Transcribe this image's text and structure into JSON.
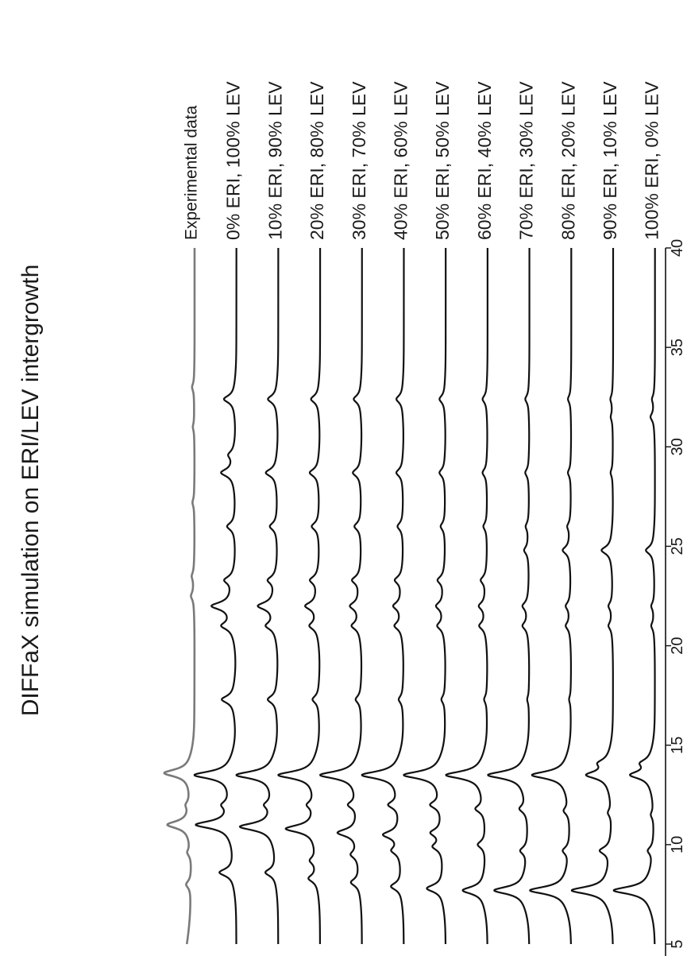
{
  "chart_data": {
    "type": "line",
    "title": "DIFFaX simulation on ERI/LEV intergrowth",
    "xlabel": "",
    "ylabel": "",
    "xlim": [
      5,
      40
    ],
    "x_ticks": [
      "5",
      "10",
      "15",
      "20",
      "25",
      "30",
      "35",
      "40"
    ],
    "orientation": "rotated 90° counter-clockwise (2θ axis runs bottom-to-top)",
    "grid": false,
    "legend": "labels beside each trace at the 40 end",
    "series": [
      {
        "name": "Experimental data",
        "color": "#7a7a7a",
        "peaks": [
          [
            8.0,
            0.14
          ],
          [
            9.6,
            0.1
          ],
          [
            11.0,
            0.62
          ],
          [
            12.0,
            0.1
          ],
          [
            13.6,
            0.72
          ],
          [
            22.5,
            0.08
          ],
          [
            23.5,
            0.06
          ],
          [
            27.2,
            0.05
          ],
          [
            31.0,
            0.04
          ],
          [
            33.0,
            0.06
          ]
        ]
      },
      {
        "name": "0% ERI, 100% LEV",
        "color": "#111111",
        "peaks": [
          [
            8.6,
            0.4
          ],
          [
            11.0,
            0.95
          ],
          [
            12.0,
            0.2
          ],
          [
            13.5,
            1.0
          ],
          [
            17.3,
            0.35
          ],
          [
            21.0,
            0.3
          ],
          [
            22.0,
            0.55
          ],
          [
            23.3,
            0.25
          ],
          [
            26.0,
            0.22
          ],
          [
            28.7,
            0.35
          ],
          [
            29.6,
            0.15
          ],
          [
            32.4,
            0.3
          ]
        ]
      },
      {
        "name": "10% ERI, 90% LEV",
        "color": "#111111",
        "peaks": [
          [
            8.6,
            0.3
          ],
          [
            10.9,
            0.9
          ],
          [
            12.0,
            0.2
          ],
          [
            13.5,
            1.0
          ],
          [
            17.3,
            0.25
          ],
          [
            21.0,
            0.25
          ],
          [
            22.0,
            0.45
          ],
          [
            23.3,
            0.22
          ],
          [
            26.0,
            0.2
          ],
          [
            28.7,
            0.3
          ],
          [
            32.4,
            0.25
          ]
        ]
      },
      {
        "name": "20% ERI, 80% LEV",
        "color": "#111111",
        "peaks": [
          [
            8.3,
            0.25
          ],
          [
            9.2,
            0.18
          ],
          [
            10.8,
            0.8
          ],
          [
            12.0,
            0.2
          ],
          [
            13.5,
            1.0
          ],
          [
            17.3,
            0.18
          ],
          [
            21.0,
            0.22
          ],
          [
            22.0,
            0.32
          ],
          [
            23.3,
            0.22
          ],
          [
            26.0,
            0.2
          ],
          [
            28.7,
            0.25
          ],
          [
            32.4,
            0.22
          ]
        ]
      },
      {
        "name": "30% ERI, 70% LEV",
        "color": "#111111",
        "peaks": [
          [
            8.1,
            0.25
          ],
          [
            9.5,
            0.2
          ],
          [
            10.6,
            0.55
          ],
          [
            12.0,
            0.25
          ],
          [
            13.5,
            1.0
          ],
          [
            17.3,
            0.15
          ],
          [
            21.0,
            0.22
          ],
          [
            22.0,
            0.25
          ],
          [
            23.3,
            0.22
          ],
          [
            26.0,
            0.18
          ],
          [
            28.7,
            0.22
          ],
          [
            32.4,
            0.2
          ]
        ]
      },
      {
        "name": "40% ERI, 60% LEV",
        "color": "#111111",
        "peaks": [
          [
            7.9,
            0.3
          ],
          [
            9.7,
            0.22
          ],
          [
            10.5,
            0.45
          ],
          [
            12.0,
            0.3
          ],
          [
            13.5,
            1.0
          ],
          [
            17.3,
            0.12
          ],
          [
            21.0,
            0.2
          ],
          [
            22.0,
            0.22
          ],
          [
            23.3,
            0.2
          ],
          [
            26.0,
            0.15
          ],
          [
            28.7,
            0.18
          ],
          [
            32.4,
            0.18
          ]
        ]
      },
      {
        "name": "50% ERI, 50% LEV",
        "color": "#111111",
        "peaks": [
          [
            7.8,
            0.45
          ],
          [
            9.9,
            0.25
          ],
          [
            10.6,
            0.3
          ],
          [
            12.0,
            0.3
          ],
          [
            13.5,
            1.0
          ],
          [
            17.3,
            0.1
          ],
          [
            21.0,
            0.18
          ],
          [
            22.0,
            0.2
          ],
          [
            23.3,
            0.18
          ],
          [
            26.0,
            0.12
          ],
          [
            28.7,
            0.15
          ],
          [
            32.4,
            0.15
          ]
        ]
      },
      {
        "name": "60% ERI, 40% LEV",
        "color": "#111111",
        "peaks": [
          [
            7.7,
            0.6
          ],
          [
            10.0,
            0.22
          ],
          [
            11.8,
            0.25
          ],
          [
            13.5,
            1.0
          ],
          [
            17.3,
            0.08
          ],
          [
            21.0,
            0.18
          ],
          [
            22.0,
            0.18
          ],
          [
            23.3,
            0.15
          ],
          [
            26.0,
            0.1
          ],
          [
            28.7,
            0.12
          ],
          [
            32.4,
            0.12
          ]
        ]
      },
      {
        "name": "70% ERI, 30% LEV",
        "color": "#111111",
        "peaks": [
          [
            7.7,
            0.85
          ],
          [
            9.7,
            0.2
          ],
          [
            11.8,
            0.2
          ],
          [
            13.5,
            1.0
          ],
          [
            17.3,
            0.05
          ],
          [
            21.0,
            0.15
          ],
          [
            22.0,
            0.15
          ],
          [
            24.8,
            0.12
          ],
          [
            26.0,
            0.08
          ],
          [
            28.7,
            0.1
          ],
          [
            32.4,
            0.1
          ]
        ]
      },
      {
        "name": "80% ERI, 20% LEV",
        "color": "#111111",
        "peaks": [
          [
            7.7,
            1.0
          ],
          [
            9.7,
            0.18
          ],
          [
            11.7,
            0.15
          ],
          [
            13.5,
            0.95
          ],
          [
            17.3,
            0.05
          ],
          [
            21.0,
            0.12
          ],
          [
            22.0,
            0.12
          ],
          [
            24.8,
            0.2
          ],
          [
            26.0,
            0.08
          ],
          [
            28.7,
            0.08
          ],
          [
            32.4,
            0.08
          ]
        ]
      },
      {
        "name": "90% ERI, 10% LEV",
        "color": "#111111",
        "peaks": [
          [
            7.7,
            1.0
          ],
          [
            9.7,
            0.3
          ],
          [
            11.6,
            0.1
          ],
          [
            13.5,
            0.6
          ],
          [
            14.1,
            0.25
          ],
          [
            21.0,
            0.1
          ],
          [
            22.0,
            0.1
          ],
          [
            24.8,
            0.28
          ],
          [
            28.7,
            0.06
          ],
          [
            31.5,
            0.05
          ],
          [
            32.4,
            0.06
          ]
        ]
      },
      {
        "name": "100% ERI, 0% LEV",
        "color": "#111111",
        "peaks": [
          [
            7.7,
            1.0
          ],
          [
            9.7,
            0.15
          ],
          [
            11.5,
            0.08
          ],
          [
            13.5,
            0.55
          ],
          [
            14.1,
            0.25
          ],
          [
            21.0,
            0.08
          ],
          [
            22.0,
            0.08
          ],
          [
            24.8,
            0.22
          ],
          [
            31.5,
            0.1
          ],
          [
            32.4,
            0.06
          ]
        ]
      }
    ]
  }
}
